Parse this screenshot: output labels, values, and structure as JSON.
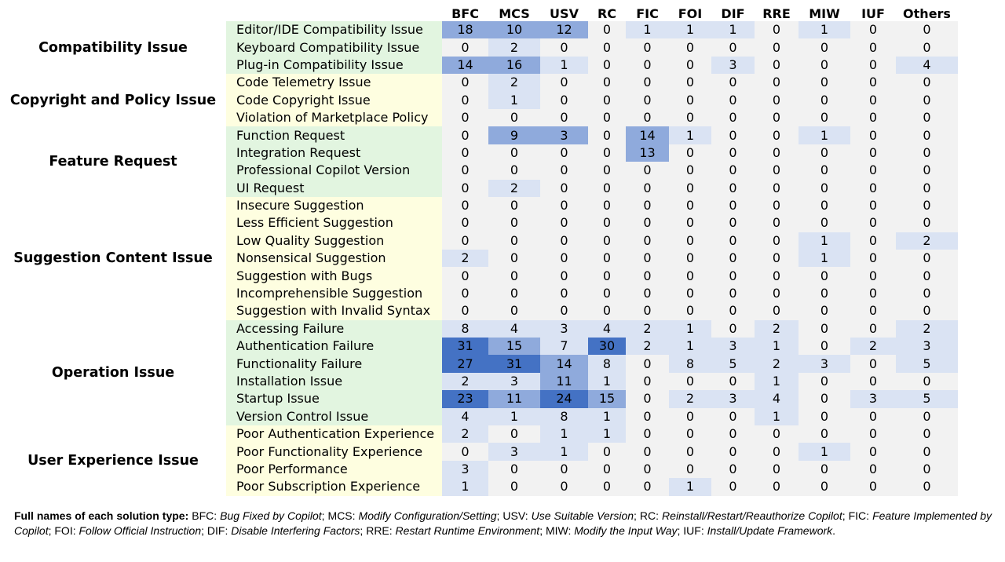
{
  "columns": [
    "BFC",
    "MCS",
    "USV",
    "RC",
    "FIC",
    "FOI",
    "DIF",
    "RRE",
    "MIW",
    "IUF",
    "Others"
  ],
  "colors": {
    "zero": "#f2f2f2",
    "low": "#dae3f3",
    "mid": "#8faadc",
    "high": "#4472c4",
    "group_green": "#e2f5e0",
    "group_yellow": "#fefee0"
  },
  "level_overrides": [
    {
      "row": "Function Request",
      "col": "USV",
      "level": 2
    }
  ],
  "groups": [
    {
      "name": "Compatibility Issue",
      "color": "green",
      "rows": [
        {
          "label": "Editor/IDE Compatibility Issue",
          "values": [
            18,
            10,
            12,
            0,
            1,
            1,
            1,
            0,
            1,
            0,
            0
          ]
        },
        {
          "label": "Keyboard Compatibility Issue",
          "values": [
            0,
            2,
            0,
            0,
            0,
            0,
            0,
            0,
            0,
            0,
            0
          ]
        },
        {
          "label": "Plug-in Compatibility Issue",
          "values": [
            14,
            16,
            1,
            0,
            0,
            0,
            3,
            0,
            0,
            0,
            4
          ]
        }
      ]
    },
    {
      "name": "Copyright and Policy Issue",
      "color": "yellow",
      "rows": [
        {
          "label": "Code Telemetry Issue",
          "values": [
            0,
            2,
            0,
            0,
            0,
            0,
            0,
            0,
            0,
            0,
            0
          ]
        },
        {
          "label": "Code Copyright Issue",
          "values": [
            0,
            1,
            0,
            0,
            0,
            0,
            0,
            0,
            0,
            0,
            0
          ]
        },
        {
          "label": "Violation of Marketplace Policy",
          "values": [
            0,
            0,
            0,
            0,
            0,
            0,
            0,
            0,
            0,
            0,
            0
          ]
        }
      ]
    },
    {
      "name": "Feature Request",
      "color": "green",
      "rows": [
        {
          "label": "Function Request",
          "values": [
            0,
            9,
            3,
            0,
            14,
            1,
            0,
            0,
            1,
            0,
            0
          ]
        },
        {
          "label": "Integration Request",
          "values": [
            0,
            0,
            0,
            0,
            13,
            0,
            0,
            0,
            0,
            0,
            0
          ]
        },
        {
          "label": "Professional Copilot Version",
          "values": [
            0,
            0,
            0,
            0,
            0,
            0,
            0,
            0,
            0,
            0,
            0
          ]
        },
        {
          "label": "UI Request",
          "values": [
            0,
            2,
            0,
            0,
            0,
            0,
            0,
            0,
            0,
            0,
            0
          ]
        }
      ]
    },
    {
      "name": "Suggestion Content Issue",
      "color": "yellow",
      "rows": [
        {
          "label": "Insecure Suggestion",
          "values": [
            0,
            0,
            0,
            0,
            0,
            0,
            0,
            0,
            0,
            0,
            0
          ]
        },
        {
          "label": "Less Efficient Suggestion",
          "values": [
            0,
            0,
            0,
            0,
            0,
            0,
            0,
            0,
            0,
            0,
            0
          ]
        },
        {
          "label": "Low Quality Suggestion",
          "values": [
            0,
            0,
            0,
            0,
            0,
            0,
            0,
            0,
            1,
            0,
            2
          ]
        },
        {
          "label": "Nonsensical Suggestion",
          "values": [
            2,
            0,
            0,
            0,
            0,
            0,
            0,
            0,
            1,
            0,
            0
          ]
        },
        {
          "label": "Suggestion with Bugs",
          "values": [
            0,
            0,
            0,
            0,
            0,
            0,
            0,
            0,
            0,
            0,
            0
          ]
        },
        {
          "label": "Incomprehensible Suggestion",
          "values": [
            0,
            0,
            0,
            0,
            0,
            0,
            0,
            0,
            0,
            0,
            0
          ]
        },
        {
          "label": "Suggestion with Invalid Syntax",
          "values": [
            0,
            0,
            0,
            0,
            0,
            0,
            0,
            0,
            0,
            0,
            0
          ]
        }
      ]
    },
    {
      "name": "Operation Issue",
      "color": "green",
      "rows": [
        {
          "label": "Accessing Failure",
          "values": [
            8,
            4,
            3,
            4,
            2,
            1,
            0,
            2,
            0,
            0,
            2
          ]
        },
        {
          "label": "Authentication Failure",
          "values": [
            31,
            15,
            7,
            30,
            2,
            1,
            3,
            1,
            0,
            2,
            3
          ]
        },
        {
          "label": "Functionality Failure",
          "values": [
            27,
            31,
            14,
            8,
            0,
            8,
            5,
            2,
            3,
            0,
            5
          ]
        },
        {
          "label": "Installation Issue",
          "values": [
            2,
            3,
            11,
            1,
            0,
            0,
            0,
            1,
            0,
            0,
            0
          ]
        },
        {
          "label": "Startup Issue",
          "values": [
            23,
            11,
            24,
            15,
            0,
            2,
            3,
            4,
            0,
            3,
            5
          ]
        },
        {
          "label": "Version Control Issue",
          "values": [
            4,
            1,
            8,
            1,
            0,
            0,
            0,
            1,
            0,
            0,
            0
          ]
        }
      ]
    },
    {
      "name": "User Experience Issue",
      "color": "yellow",
      "rows": [
        {
          "label": "Poor Authentication Experience",
          "values": [
            2,
            0,
            1,
            1,
            0,
            0,
            0,
            0,
            0,
            0,
            0
          ]
        },
        {
          "label": "Poor Functionality Experience",
          "values": [
            0,
            3,
            1,
            0,
            0,
            0,
            0,
            0,
            1,
            0,
            0
          ]
        },
        {
          "label": "Poor Performance",
          "values": [
            3,
            0,
            0,
            0,
            0,
            0,
            0,
            0,
            0,
            0,
            0
          ]
        },
        {
          "label": "Poor Subscription Experience",
          "values": [
            1,
            0,
            0,
            0,
            0,
            1,
            0,
            0,
            0,
            0,
            0
          ]
        }
      ]
    }
  ],
  "caption": {
    "lead": "Full names of each solution type:",
    "entries": [
      {
        "abbr": "BFC",
        "full": "Bug Fixed by Copilot"
      },
      {
        "abbr": "MCS",
        "full": "Modify Configuration/Setting"
      },
      {
        "abbr": "USV",
        "full": "Use Suitable Version"
      },
      {
        "abbr": "RC",
        "full": "Reinstall/Restart/Reauthorize Copilot"
      },
      {
        "abbr": "FIC",
        "full": "Feature Implemented by Copilot"
      },
      {
        "abbr": "FOI",
        "full": "Follow Official Instruction"
      },
      {
        "abbr": "DIF",
        "full": "Disable Interfering Factors"
      },
      {
        "abbr": "RRE",
        "full": "Restart Runtime Environment"
      },
      {
        "abbr": "MIW",
        "full": "Modify the Input Way"
      },
      {
        "abbr": "IUF",
        "full": "Install/Update Framework"
      }
    ]
  }
}
